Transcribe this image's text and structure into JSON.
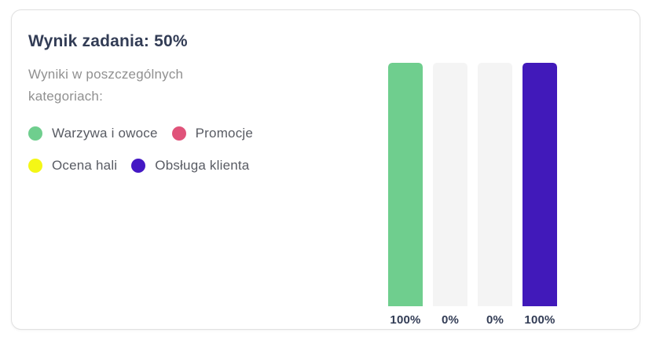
{
  "card": {
    "title": "Wynik zadania: 50%",
    "subtitle": "Wyniki w poszczególnych kategoriach:"
  },
  "legend": {
    "items": [
      {
        "label": "Warzywa i owoce",
        "color": "#6fce8e"
      },
      {
        "label": "Promocje",
        "color": "#e0537a"
      },
      {
        "label": "Ocena hali",
        "color": "#f4f716"
      },
      {
        "label": "Obsługa klienta",
        "color": "#4418c4"
      }
    ]
  },
  "chart_data": {
    "type": "bar",
    "title": "",
    "xlabel": "",
    "ylabel": "",
    "categories": [
      "Warzywa i owoce",
      "Promocje",
      "Ocena hali",
      "Obsługa klienta"
    ],
    "values": [
      100,
      0,
      0,
      100
    ],
    "value_labels": [
      "100%",
      "0%",
      "0%",
      "100%"
    ],
    "bar_colors": [
      "#6fce8e",
      "#f4f4f4",
      "#f4f4f4",
      "#4119ba"
    ],
    "track_color": "#f4f4f4",
    "ylim": [
      0,
      100
    ],
    "grid": false,
    "legend_position": "left"
  }
}
